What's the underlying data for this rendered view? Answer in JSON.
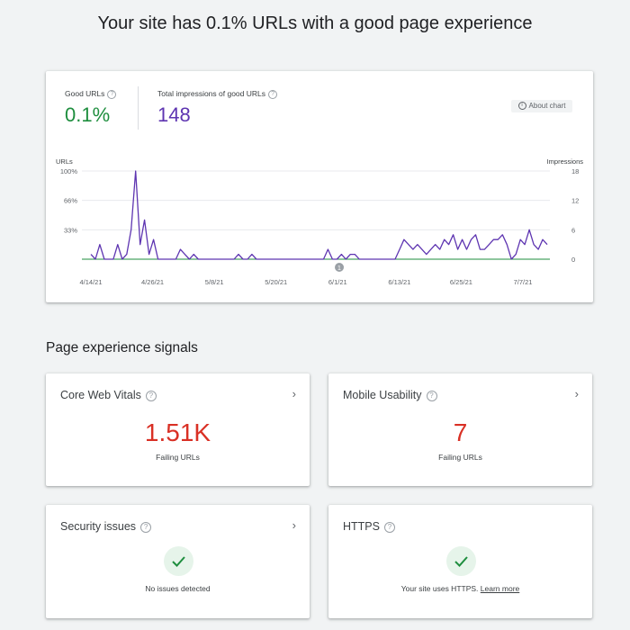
{
  "page_title": "Your site has 0.1% URLs with a good page experience",
  "summary": {
    "good_urls_label": "Good URLs",
    "good_urls_value": "0.1%",
    "impressions_label": "Total impressions of good URLs",
    "impressions_value": "148",
    "about_chart_label": "About chart"
  },
  "chart_data": {
    "type": "line",
    "left_axis_label": "URLs",
    "right_axis_label": "Impressions",
    "left_ticks": [
      "100%",
      "66%",
      "33%"
    ],
    "right_ticks": [
      "18",
      "12",
      "6",
      "0"
    ],
    "x_tick_labels": [
      "4/14/21",
      "4/26/21",
      "5/8/21",
      "5/20/21",
      "6/1/21",
      "6/13/21",
      "6/25/21",
      "7/7/21"
    ],
    "annotation": "1",
    "series": [
      {
        "name": "Impressions",
        "color": "#5e35b1",
        "axis": "right",
        "values": [
          1,
          0,
          3,
          0,
          0,
          0,
          3,
          0,
          1,
          6,
          18,
          3,
          8,
          1,
          4,
          0,
          0,
          0,
          0,
          0,
          2,
          1,
          0,
          1,
          0,
          0,
          0,
          0,
          0,
          0,
          0,
          0,
          0,
          1,
          0,
          0,
          1,
          0,
          0,
          0,
          0,
          0,
          0,
          0,
          0,
          0,
          0,
          0,
          0,
          0,
          0,
          0,
          0,
          2,
          0,
          0,
          1,
          0,
          1,
          1,
          0,
          0,
          0,
          0,
          0,
          0,
          0,
          0,
          0,
          2,
          4,
          3,
          2,
          3,
          2,
          1,
          2,
          3,
          2,
          4,
          3,
          5,
          2,
          4,
          2,
          4,
          5,
          2,
          2,
          3,
          4,
          4,
          5,
          3,
          0,
          1,
          4,
          3,
          6,
          3,
          2,
          4,
          3
        ]
      },
      {
        "name": "Good URLs",
        "color": "#1e8e3e",
        "axis": "left",
        "values": [
          0
        ]
      }
    ],
    "ylim_left": [
      0,
      100
    ],
    "ylim_right": [
      0,
      18
    ]
  },
  "signals": {
    "section_title": "Page experience signals",
    "core_web_vitals": {
      "title": "Core Web Vitals",
      "value": "1.51K",
      "sub": "Failing URLs"
    },
    "mobile_usability": {
      "title": "Mobile Usability",
      "value": "7",
      "sub": "Failing URLs"
    },
    "security": {
      "title": "Security issues",
      "status": "No issues detected"
    },
    "https": {
      "title": "HTTPS",
      "status": "Your site uses HTTPS.",
      "link": "Learn more"
    }
  },
  "colors": {
    "good": "#1e8e3e",
    "impressions": "#5e35b1",
    "fail": "#d93025"
  },
  "icons": {
    "help": "help-circle-icon",
    "chevron": "chevron-right-icon",
    "check": "check-icon",
    "info": "info-icon"
  }
}
